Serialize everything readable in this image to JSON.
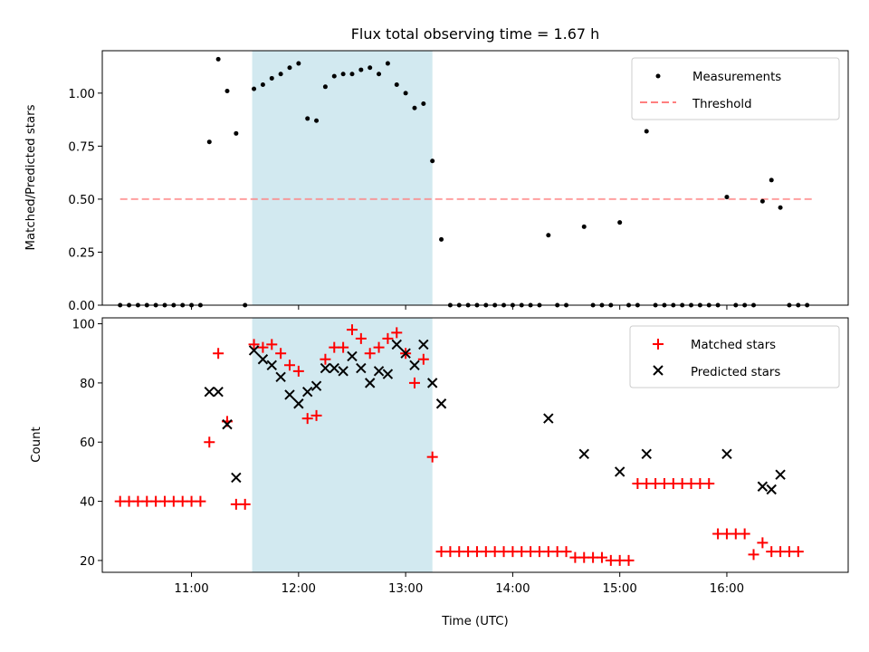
{
  "chart_data": [
    {
      "type": "scatter",
      "title": "Flux total observing time = 1.67 h",
      "xlabel": "",
      "ylabel": "Matched/Predicted stars",
      "ylim": [
        0,
        1.2
      ],
      "xlim": [
        "10:10",
        "17:08"
      ],
      "yticks": [
        "0.00",
        "0.25",
        "0.50",
        "0.75",
        "1.00"
      ],
      "shaded_region": {
        "start": "11:34",
        "end": "13:15",
        "color": "#d2e9f0"
      },
      "legend": {
        "position": "top-right",
        "entries": [
          "Measurements",
          "Threshold"
        ]
      },
      "threshold": {
        "name": "Threshold",
        "y": 0.5,
        "x_start": "10:20",
        "x_end": "16:48",
        "color": "#ff7f7f"
      },
      "series": [
        {
          "name": "Measurements",
          "color": "#000000",
          "points": [
            [
              "10:20",
              0.0
            ],
            [
              "10:25",
              0.0
            ],
            [
              "10:30",
              0.0
            ],
            [
              "10:35",
              0.0
            ],
            [
              "10:40",
              0.0
            ],
            [
              "10:45",
              0.0
            ],
            [
              "10:50",
              0.0
            ],
            [
              "10:55",
              0.0
            ],
            [
              "11:00",
              0.0
            ],
            [
              "11:05",
              0.0
            ],
            [
              "11:10",
              0.77
            ],
            [
              "11:15",
              1.16
            ],
            [
              "11:20",
              1.01
            ],
            [
              "11:25",
              0.81
            ],
            [
              "11:30",
              0.0
            ],
            [
              "11:35",
              1.02
            ],
            [
              "11:40",
              1.04
            ],
            [
              "11:45",
              1.07
            ],
            [
              "11:50",
              1.09
            ],
            [
              "11:55",
              1.12
            ],
            [
              "12:00",
              1.14
            ],
            [
              "12:05",
              0.88
            ],
            [
              "12:10",
              0.87
            ],
            [
              "12:15",
              1.03
            ],
            [
              "12:20",
              1.08
            ],
            [
              "12:25",
              1.09
            ],
            [
              "12:30",
              1.09
            ],
            [
              "12:35",
              1.11
            ],
            [
              "12:40",
              1.12
            ],
            [
              "12:45",
              1.09
            ],
            [
              "12:50",
              1.14
            ],
            [
              "12:55",
              1.04
            ],
            [
              "13:00",
              1.0
            ],
            [
              "13:05",
              0.93
            ],
            [
              "13:10",
              0.95
            ],
            [
              "13:15",
              0.68
            ],
            [
              "13:20",
              0.31
            ],
            [
              "13:25",
              0.0
            ],
            [
              "13:30",
              0.0
            ],
            [
              "13:35",
              0.0
            ],
            [
              "13:40",
              0.0
            ],
            [
              "13:45",
              0.0
            ],
            [
              "13:50",
              0.0
            ],
            [
              "13:55",
              0.0
            ],
            [
              "14:00",
              0.0
            ],
            [
              "14:05",
              0.0
            ],
            [
              "14:10",
              0.0
            ],
            [
              "14:15",
              0.0
            ],
            [
              "14:20",
              0.33
            ],
            [
              "14:25",
              0.0
            ],
            [
              "14:30",
              0.0
            ],
            [
              "14:40",
              0.37
            ],
            [
              "14:45",
              0.0
            ],
            [
              "14:50",
              0.0
            ],
            [
              "14:55",
              0.0
            ],
            [
              "15:00",
              0.39
            ],
            [
              "15:05",
              0.0
            ],
            [
              "15:10",
              0.0
            ],
            [
              "15:15",
              0.82
            ],
            [
              "15:20",
              0.0
            ],
            [
              "15:25",
              0.0
            ],
            [
              "15:30",
              0.0
            ],
            [
              "15:35",
              0.0
            ],
            [
              "15:40",
              0.0
            ],
            [
              "15:45",
              0.0
            ],
            [
              "15:50",
              0.0
            ],
            [
              "15:55",
              0.0
            ],
            [
              "16:00",
              0.51
            ],
            [
              "16:05",
              0.0
            ],
            [
              "16:10",
              0.0
            ],
            [
              "16:15",
              0.0
            ],
            [
              "16:20",
              0.49
            ],
            [
              "16:25",
              0.59
            ],
            [
              "16:30",
              0.46
            ],
            [
              "16:35",
              0.0
            ],
            [
              "16:40",
              0.0
            ],
            [
              "16:45",
              0.0
            ]
          ]
        }
      ]
    },
    {
      "type": "scatter",
      "xlabel": "Time (UTC)",
      "ylabel": "Count",
      "ylim": [
        16,
        102
      ],
      "xlim": [
        "10:10",
        "17:08"
      ],
      "xticks": [
        "11:00",
        "12:00",
        "13:00",
        "14:00",
        "15:00",
        "16:00"
      ],
      "yticks": [
        "20",
        "40",
        "60",
        "80",
        "100"
      ],
      "shaded_region": {
        "start": "11:34",
        "end": "13:15",
        "color": "#d2e9f0"
      },
      "legend": {
        "position": "top-right",
        "entries": [
          "Matched stars",
          "Predicted stars"
        ]
      },
      "series": [
        {
          "name": "Matched stars",
          "color": "#ff0000",
          "marker": "plus",
          "points": [
            [
              "10:20",
              40
            ],
            [
              "10:25",
              40
            ],
            [
              "10:30",
              40
            ],
            [
              "10:35",
              40
            ],
            [
              "10:40",
              40
            ],
            [
              "10:45",
              40
            ],
            [
              "10:50",
              40
            ],
            [
              "10:55",
              40
            ],
            [
              "11:00",
              40
            ],
            [
              "11:05",
              40
            ],
            [
              "11:10",
              60
            ],
            [
              "11:15",
              90
            ],
            [
              "11:20",
              67
            ],
            [
              "11:25",
              39
            ],
            [
              "11:30",
              39
            ],
            [
              "11:35",
              93
            ],
            [
              "11:40",
              92
            ],
            [
              "11:45",
              93
            ],
            [
              "11:50",
              90
            ],
            [
              "11:55",
              86
            ],
            [
              "12:00",
              84
            ],
            [
              "12:05",
              68
            ],
            [
              "12:10",
              69
            ],
            [
              "12:15",
              88
            ],
            [
              "12:20",
              92
            ],
            [
              "12:25",
              92
            ],
            [
              "12:30",
              98
            ],
            [
              "12:35",
              95
            ],
            [
              "12:40",
              90
            ],
            [
              "12:45",
              92
            ],
            [
              "12:50",
              95
            ],
            [
              "12:55",
              97
            ],
            [
              "13:00",
              90
            ],
            [
              "13:05",
              80
            ],
            [
              "13:10",
              88
            ],
            [
              "13:15",
              55
            ],
            [
              "13:20",
              23
            ],
            [
              "13:25",
              23
            ],
            [
              "13:30",
              23
            ],
            [
              "13:35",
              23
            ],
            [
              "13:40",
              23
            ],
            [
              "13:45",
              23
            ],
            [
              "13:50",
              23
            ],
            [
              "13:55",
              23
            ],
            [
              "14:00",
              23
            ],
            [
              "14:05",
              23
            ],
            [
              "14:10",
              23
            ],
            [
              "14:15",
              23
            ],
            [
              "14:20",
              23
            ],
            [
              "14:25",
              23
            ],
            [
              "14:30",
              23
            ],
            [
              "14:35",
              21
            ],
            [
              "14:40",
              21
            ],
            [
              "14:45",
              21
            ],
            [
              "14:50",
              21
            ],
            [
              "14:55",
              20
            ],
            [
              "15:00",
              20
            ],
            [
              "15:05",
              20
            ],
            [
              "15:10",
              46
            ],
            [
              "15:15",
              46
            ],
            [
              "15:20",
              46
            ],
            [
              "15:25",
              46
            ],
            [
              "15:30",
              46
            ],
            [
              "15:35",
              46
            ],
            [
              "15:40",
              46
            ],
            [
              "15:45",
              46
            ],
            [
              "15:50",
              46
            ],
            [
              "15:55",
              29
            ],
            [
              "16:00",
              29
            ],
            [
              "16:05",
              29
            ],
            [
              "16:10",
              29
            ],
            [
              "16:15",
              22
            ],
            [
              "16:20",
              26
            ],
            [
              "16:25",
              23
            ],
            [
              "16:30",
              23
            ],
            [
              "16:35",
              23
            ],
            [
              "16:40",
              23
            ]
          ]
        },
        {
          "name": "Predicted stars",
          "color": "#000000",
          "marker": "x",
          "points": [
            [
              "11:10",
              77
            ],
            [
              "11:15",
              77
            ],
            [
              "11:20",
              66
            ],
            [
              "11:25",
              48
            ],
            [
              "11:35",
              91
            ],
            [
              "11:40",
              88
            ],
            [
              "11:45",
              86
            ],
            [
              "11:50",
              82
            ],
            [
              "11:55",
              76
            ],
            [
              "12:00",
              73
            ],
            [
              "12:05",
              77
            ],
            [
              "12:10",
              79
            ],
            [
              "12:15",
              85
            ],
            [
              "12:20",
              85
            ],
            [
              "12:25",
              84
            ],
            [
              "12:30",
              89
            ],
            [
              "12:35",
              85
            ],
            [
              "12:40",
              80
            ],
            [
              "12:45",
              84
            ],
            [
              "12:50",
              83
            ],
            [
              "12:55",
              93
            ],
            [
              "13:00",
              90
            ],
            [
              "13:05",
              86
            ],
            [
              "13:10",
              93
            ],
            [
              "13:15",
              80
            ],
            [
              "13:20",
              73
            ],
            [
              "14:20",
              68
            ],
            [
              "14:40",
              56
            ],
            [
              "15:00",
              50
            ],
            [
              "15:15",
              56
            ],
            [
              "16:00",
              56
            ],
            [
              "16:20",
              45
            ],
            [
              "16:25",
              44
            ],
            [
              "16:30",
              49
            ]
          ]
        }
      ]
    }
  ]
}
